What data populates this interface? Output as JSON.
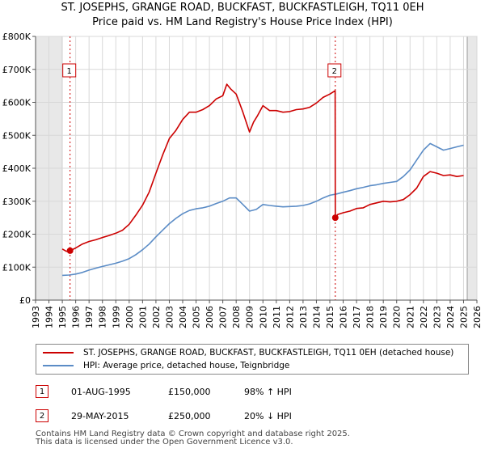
{
  "title_line1": "ST. JOSEPHS, GRANGE ROAD, BUCKFAST, BUCKFASTLEIGH, TQ11 0EH",
  "title_line2": "Price paid vs. HM Land Registry's House Price Index (HPI)",
  "chart_data": {
    "type": "line",
    "x_ticks": [
      "1993",
      "1994",
      "1995",
      "1996",
      "1997",
      "1998",
      "1999",
      "2000",
      "2001",
      "2002",
      "2003",
      "2004",
      "2005",
      "2006",
      "2007",
      "2008",
      "2009",
      "2010",
      "2011",
      "2012",
      "2013",
      "2014",
      "2015",
      "2016",
      "2017",
      "2018",
      "2019",
      "2020",
      "2021",
      "2022",
      "2023",
      "2024",
      "2025",
      "2026"
    ],
    "y_ticks": [
      "£0",
      "£100K",
      "£200K",
      "£300K",
      "£400K",
      "£500K",
      "£600K",
      "£700K",
      "£800K"
    ],
    "xlim": [
      1993,
      2026
    ],
    "ylim": [
      0,
      800000
    ],
    "series": [
      {
        "name": "ST. JOSEPHS, GRANGE ROAD, BUCKFAST, BUCKFASTLEIGH, TQ11 0EH (detached house)",
        "color": "#cc0000",
        "x": [
          1995.0,
          1995.3,
          1995.58,
          1996.0,
          1996.5,
          1997.0,
          1997.5,
          1998.0,
          1998.5,
          1999.0,
          1999.5,
          2000.0,
          2000.5,
          2001.0,
          2001.5,
          2002.0,
          2002.5,
          2003.0,
          2003.5,
          2004.0,
          2004.5,
          2005.0,
          2005.5,
          2006.0,
          2006.5,
          2007.0,
          2007.3,
          2007.6,
          2008.0,
          2008.5,
          2009.0,
          2009.3,
          2009.6,
          2010.0,
          2010.5,
          2011.0,
          2011.5,
          2012.0,
          2012.5,
          2013.0,
          2013.5,
          2014.0,
          2014.5,
          2015.0,
          2015.4,
          2015.41,
          2015.6,
          2016.0,
          2016.5,
          2017.0,
          2017.5,
          2018.0,
          2018.5,
          2019.0,
          2019.5,
          2020.0,
          2020.5,
          2021.0,
          2021.5,
          2022.0,
          2022.5,
          2023.0,
          2023.5,
          2024.0,
          2024.5,
          2025.0
        ],
        "values": [
          155000,
          148000,
          150000,
          158000,
          170000,
          178000,
          183000,
          190000,
          196000,
          203000,
          212000,
          230000,
          258000,
          288000,
          328000,
          385000,
          440000,
          490000,
          515000,
          548000,
          570000,
          570000,
          578000,
          590000,
          610000,
          620000,
          655000,
          640000,
          625000,
          570000,
          510000,
          540000,
          560000,
          590000,
          575000,
          575000,
          570000,
          572000,
          578000,
          580000,
          585000,
          598000,
          615000,
          625000,
          635000,
          250000,
          260000,
          265000,
          270000,
          278000,
          280000,
          290000,
          295000,
          300000,
          298000,
          300000,
          305000,
          320000,
          340000,
          375000,
          390000,
          385000,
          378000,
          380000,
          375000,
          378000
        ]
      },
      {
        "name": "HPI: Average price, detached house, Teignbridge",
        "color": "#5b8cc6",
        "x": [
          1995.0,
          1995.5,
          1996.0,
          1996.5,
          1997.0,
          1997.5,
          1998.0,
          1998.5,
          1999.0,
          1999.5,
          2000.0,
          2000.5,
          2001.0,
          2001.5,
          2002.0,
          2002.5,
          2003.0,
          2003.5,
          2004.0,
          2004.5,
          2005.0,
          2005.5,
          2006.0,
          2006.5,
          2007.0,
          2007.5,
          2008.0,
          2008.5,
          2009.0,
          2009.5,
          2010.0,
          2010.5,
          2011.0,
          2011.5,
          2012.0,
          2012.5,
          2013.0,
          2013.5,
          2014.0,
          2014.5,
          2015.0,
          2015.5,
          2016.0,
          2016.5,
          2017.0,
          2017.5,
          2018.0,
          2018.5,
          2019.0,
          2019.5,
          2020.0,
          2020.5,
          2021.0,
          2021.5,
          2022.0,
          2022.5,
          2023.0,
          2023.5,
          2024.0,
          2024.5,
          2025.0
        ],
        "values": [
          75000,
          76000,
          79000,
          84000,
          91000,
          97000,
          102000,
          107000,
          112000,
          118000,
          126000,
          138000,
          153000,
          170000,
          192000,
          212000,
          232000,
          248000,
          262000,
          272000,
          277000,
          280000,
          285000,
          293000,
          300000,
          310000,
          310000,
          290000,
          270000,
          275000,
          290000,
          287000,
          285000,
          283000,
          284000,
          285000,
          287000,
          292000,
          300000,
          310000,
          318000,
          322000,
          327000,
          332000,
          338000,
          342000,
          347000,
          350000,
          354000,
          357000,
          360000,
          375000,
          395000,
          425000,
          455000,
          475000,
          465000,
          455000,
          460000,
          465000,
          470000
        ]
      }
    ],
    "annotations": [
      {
        "label": "1",
        "x": 1995.58,
        "y": 150000
      },
      {
        "label": "2",
        "x": 2015.41,
        "y": 250000
      }
    ]
  },
  "legend": {
    "red_label": "ST. JOSEPHS, GRANGE ROAD, BUCKFAST, BUCKFASTLEIGH, TQ11 0EH (detached house)",
    "blue_label": "HPI: Average price, detached house, Teignbridge"
  },
  "sales": [
    {
      "num": "1",
      "date": "01-AUG-1995",
      "price": "£150,000",
      "hpi": "98% ↑ HPI"
    },
    {
      "num": "2",
      "date": "29-MAY-2015",
      "price": "£250,000",
      "hpi": "20% ↓ HPI"
    }
  ],
  "footer_line1": "Contains HM Land Registry data © Crown copyright and database right 2025.",
  "footer_line2": "This data is licensed under the Open Government Licence v3.0."
}
